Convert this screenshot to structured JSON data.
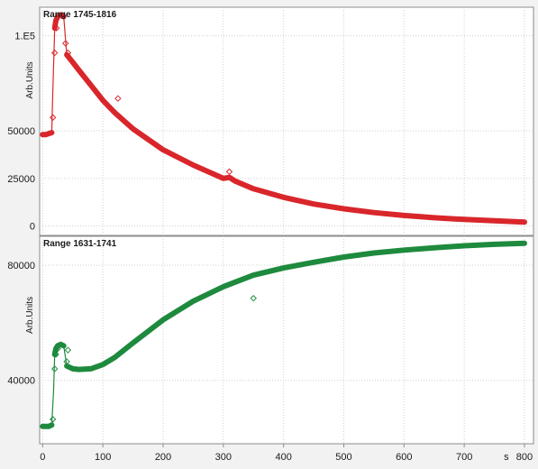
{
  "chart_data": [
    {
      "type": "line",
      "title": "Range 1745-1816",
      "ylabel": "Arb.Units",
      "xlim": [
        -5,
        815
      ],
      "ylim": [
        -5000,
        115000
      ],
      "xticks": [
        0,
        100,
        200,
        300,
        400,
        500,
        600,
        700,
        800
      ],
      "yticks": [
        0,
        25000,
        50000,
        100000
      ],
      "ytick_labels": [
        "0",
        "25000",
        "50000",
        "1.E5"
      ],
      "grid": true,
      "color": "#d9262b",
      "series": [
        {
          "x": [
            0,
            5,
            10,
            15,
            17,
            20,
            22,
            25,
            30,
            35,
            40,
            50,
            60,
            80,
            100,
            120,
            150,
            200,
            250,
            300,
            310,
            320,
            350,
            400,
            450,
            500,
            550,
            600,
            650,
            700,
            750,
            800
          ],
          "values": [
            48000,
            48000,
            48500,
            49000,
            72000,
            104000,
            108000,
            110000,
            111000,
            110000,
            90000,
            86000,
            82000,
            74000,
            66000,
            59500,
            51000,
            40000,
            32000,
            25000,
            25500,
            23500,
            19500,
            15000,
            11500,
            9000,
            7000,
            5500,
            4300,
            3400,
            2700,
            2000
          ]
        }
      ],
      "markers": [
        {
          "x": 17,
          "y": 57000
        },
        {
          "x": 20,
          "y": 91000
        },
        {
          "x": 23,
          "y": 104000
        },
        {
          "x": 38,
          "y": 96000
        },
        {
          "x": 42,
          "y": 91000
        },
        {
          "x": 125,
          "y": 67000
        },
        {
          "x": 310,
          "y": 28500
        }
      ]
    },
    {
      "type": "line",
      "title": "Range 1631-1741",
      "ylabel": "Arb.Units",
      "xlabel": "s",
      "xlim": [
        -5,
        815
      ],
      "ylim": [
        18000,
        90000
      ],
      "xticks": [
        0,
        100,
        200,
        300,
        400,
        500,
        600,
        700,
        800
      ],
      "yticks": [
        40000,
        80000
      ],
      "ytick_labels": [
        "40000",
        "80000"
      ],
      "grid": true,
      "color": "#1e8a3e",
      "series": [
        {
          "x": [
            0,
            10,
            15,
            18,
            20,
            22,
            25,
            30,
            35,
            40,
            45,
            50,
            60,
            80,
            100,
            120,
            150,
            200,
            250,
            300,
            350,
            400,
            450,
            500,
            550,
            600,
            650,
            700,
            750,
            800
          ],
          "values": [
            24000,
            24000,
            24500,
            36000,
            49000,
            51000,
            52000,
            52500,
            52000,
            45000,
            44500,
            44000,
            43800,
            44000,
            45500,
            48000,
            53000,
            61000,
            67500,
            72500,
            76500,
            79000,
            81000,
            82800,
            84200,
            85200,
            86000,
            86700,
            87200,
            87600
          ]
        }
      ],
      "markers": [
        {
          "x": 17,
          "y": 26500
        },
        {
          "x": 20,
          "y": 44000
        },
        {
          "x": 22,
          "y": 49000
        },
        {
          "x": 25,
          "y": 51000
        },
        {
          "x": 40,
          "y": 46500
        },
        {
          "x": 42,
          "y": 50500
        },
        {
          "x": 350,
          "y": 68500
        }
      ]
    }
  ]
}
